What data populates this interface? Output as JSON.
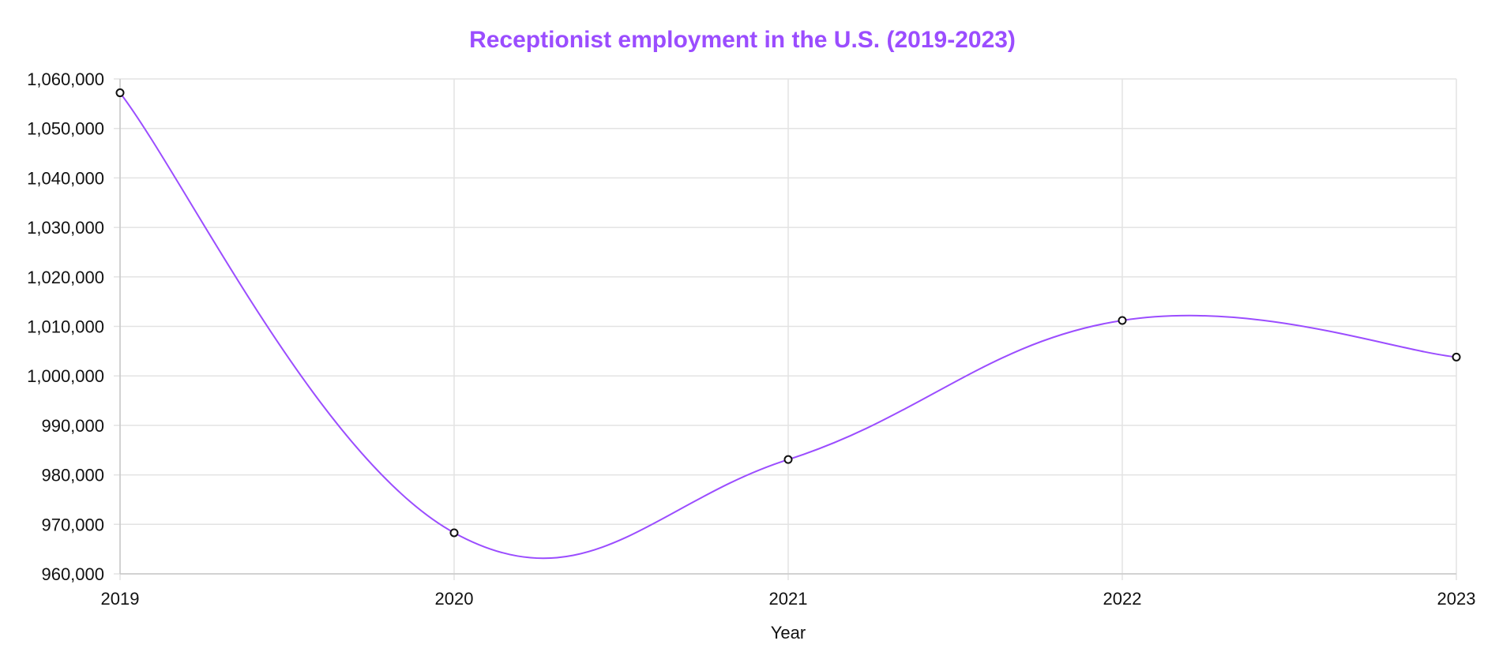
{
  "chart_data": {
    "type": "line",
    "title": "Receptionist employment in the U.S. (2019-2023)",
    "xlabel": "Year",
    "ylabel": "",
    "categories": [
      "2019",
      "2020",
      "2021",
      "2022",
      "2023"
    ],
    "series": [
      {
        "name": "Receptionist employment",
        "values": [
          1057200,
          968300,
          983100,
          1011200,
          1003800
        ]
      }
    ],
    "ylim": [
      960000,
      1060000
    ],
    "yticks": [
      960000,
      970000,
      980000,
      990000,
      1000000,
      1010000,
      1020000,
      1030000,
      1040000,
      1050000,
      1060000
    ],
    "ytick_labels": [
      "960,000",
      "970,000",
      "980,000",
      "990,000",
      "1,000,000",
      "1,010,000",
      "1,020,000",
      "1,030,000",
      "1,040,000",
      "1,050,000",
      "1,060,000"
    ],
    "grid": true,
    "line_style": "smooth",
    "colors": {
      "title": "#9b4dff",
      "line": "#9b4dff",
      "point_fill": "#ffffff",
      "point_stroke": "#111111"
    }
  }
}
